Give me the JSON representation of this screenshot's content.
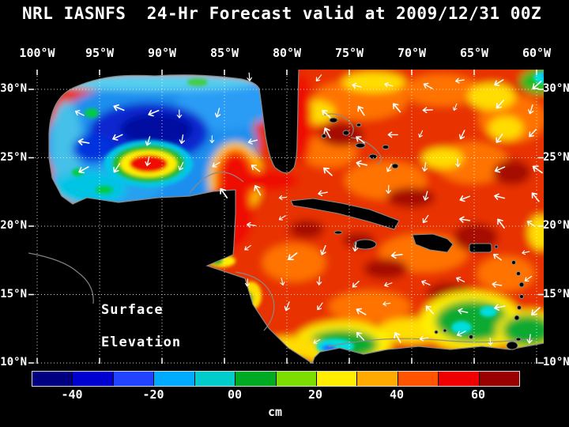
{
  "title": "NRL IASNFS  24-Hr Forecast valid at 2009/12/31 00Z",
  "map": {
    "lon_labels": [
      "100°W",
      "95°W",
      "90°W",
      "85°W",
      "80°W",
      "75°W",
      "70°W",
      "65°W",
      "60°W"
    ],
    "lat_labels": [
      "30°N",
      "25°N",
      "20°N",
      "15°N",
      "10°N"
    ],
    "overlay_caption": {
      "line1": "Surface",
      "line2": "Elevation"
    }
  },
  "colorbar": {
    "unit": "cm",
    "tick_labels": [
      "-40",
      "-20",
      "00",
      "20",
      "40",
      "60"
    ],
    "segment_colors": [
      "#000080",
      "#0000d0",
      "#2244ff",
      "#00aaff",
      "#00cccc",
      "#00aa22",
      "#7ddd00",
      "#ffee00",
      "#ffaa00",
      "#ff5500",
      "#ee0000",
      "#990000"
    ]
  },
  "colors": {
    "background": "#000000",
    "text": "#ffffff",
    "coastline_contours": "#8a8a8a",
    "grid_lines": "#ffffff",
    "vector_arrows": "#ffffff"
  },
  "chart_data": {
    "type": "heatmap",
    "title": "NRL IASNFS 24-Hr Forecast valid at 2009/12/31 00Z",
    "variable": "Surface Elevation",
    "unit": "cm",
    "model": "NRL IASNFS",
    "forecast_hours": 24,
    "valid_time": "2009/12/31 00Z",
    "lon_range_deg_w": [
      100,
      60
    ],
    "lat_range_deg_n": [
      10,
      30
    ],
    "colorbar_tick_values": [
      -40,
      -20,
      0,
      20,
      40,
      60
    ],
    "colorbar_range": [
      -50,
      70
    ],
    "overlay": "surface current vectors (white arrows), gray coastline/shelf contours, dotted white 5-degree graticule",
    "features": [
      {
        "region": "Gulf of Mexico interior",
        "approx_value_cm": "-40 to -10"
      },
      {
        "region": "Warm eddy near 92W 24.5N",
        "approx_value_cm": "40 to 50"
      },
      {
        "region": "Loop Current / Yucatan Channel / Florida Straits",
        "approx_value_cm": "40 to 60"
      },
      {
        "region": "Caribbean Sea and western Atlantic",
        "approx_value_cm": "20 to 60"
      },
      {
        "region": "Southwest Caribbean off Panama/Colombia",
        "approx_value_cm": "-20 to 10"
      },
      {
        "region": "Southeast Caribbean near 12N 65W",
        "approx_value_cm": "-10 to 10"
      },
      {
        "region": "Top-right corner near 30N 61W",
        "approx_value_cm": "-10 to 0"
      }
    ]
  }
}
